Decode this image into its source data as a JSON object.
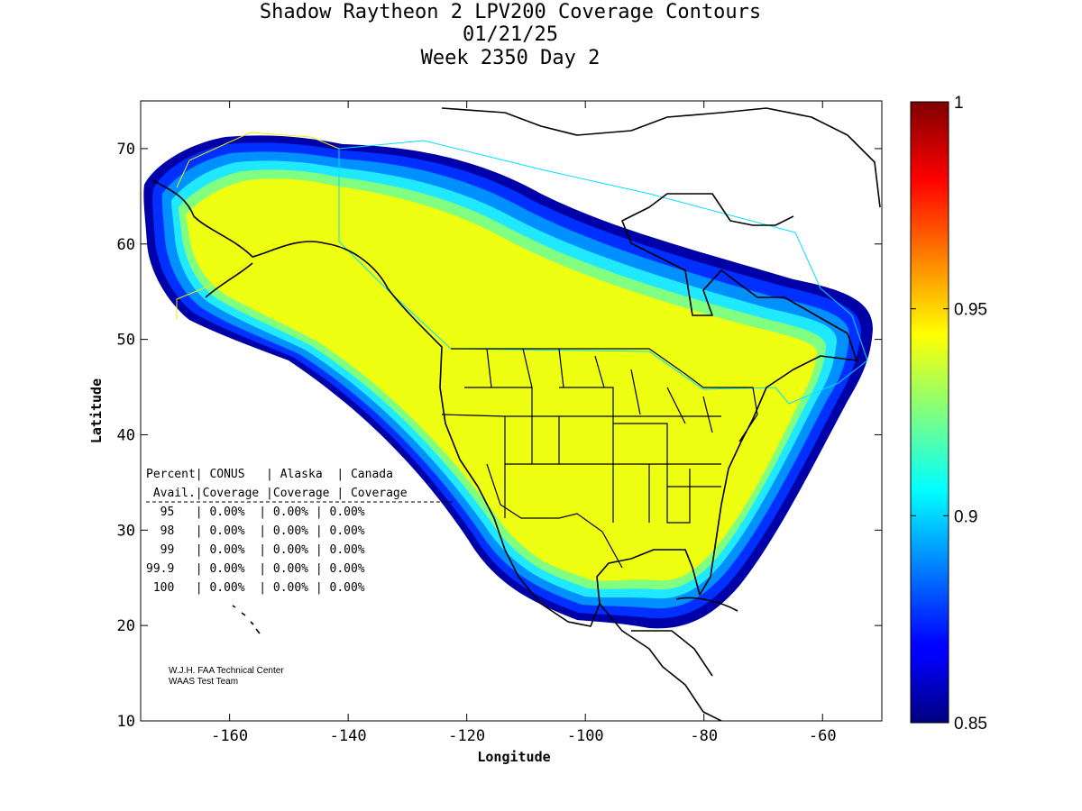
{
  "chart_data": {
    "type": "heatmap",
    "title_lines": [
      "Shadow Raytheon 2 LPV200 Coverage Contours",
      "01/21/25",
      "Week 2350 Day 2"
    ],
    "xlabel": "Longitude",
    "ylabel": "Latitude",
    "xlim": [
      -175,
      -50
    ],
    "ylim": [
      10,
      75
    ],
    "x_ticks": [
      -160,
      -140,
      -120,
      -100,
      -80,
      -60
    ],
    "y_ticks": [
      10,
      20,
      30,
      40,
      50,
      60,
      70
    ],
    "colorbar": {
      "range": [
        0.85,
        1
      ],
      "ticks": [
        0.85,
        0.9,
        0.95,
        1
      ],
      "tick_labels": [
        "0.85",
        "0.9",
        "0.95",
        "1"
      ],
      "colormap": "jet"
    },
    "coverage_value_interior": 0.945,
    "coverage_table": {
      "header1": "Percent| CONUS   | Alaska  | Canada",
      "header2": " Avail.|Coverage |Coverage | Coverage",
      "rows": [
        "  95   | 0.00%  | 0.00% | 0.00%",
        "  98   | 0.00%  | 0.00% | 0.00%",
        "  99   | 0.00%  | 0.00% | 0.00%",
        "99.9   | 0.00%  | 0.00% | 0.00%",
        " 100   | 0.00%  | 0.00% | 0.00%"
      ]
    },
    "credit": [
      "W.J.H. FAA Technical Center",
      "WAAS Test Team"
    ]
  },
  "colors": {
    "coverage_yellow": "#eeff12",
    "map_lines": "#000000",
    "service_boundary": "#00e0ff"
  }
}
